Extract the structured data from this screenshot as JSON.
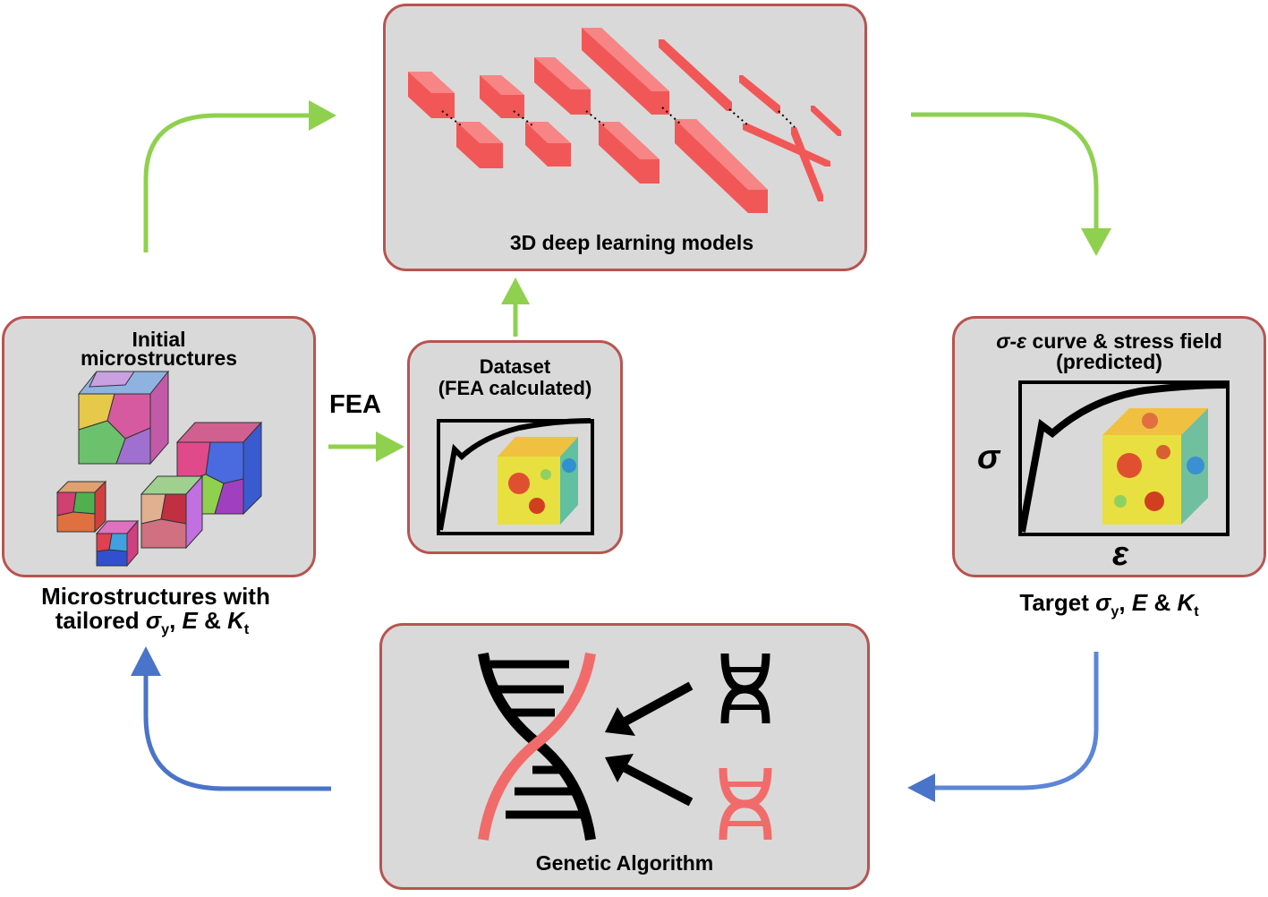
{
  "panels": {
    "dl_models": {
      "label": "3D deep learning models"
    },
    "initial": {
      "label_line1": "Initial",
      "label_line2": "microstructures"
    },
    "dataset": {
      "label_line1": "Dataset",
      "label_line2": "(FEA calculated)"
    },
    "predicted": {
      "label_line1_rest": " curve & stress field",
      "label_line2": "(predicted)",
      "sigma_eps": "σ-ε"
    },
    "ga": {
      "label": "Genetic Algorithm"
    }
  },
  "arrows": {
    "fea_label": "FEA"
  },
  "captions": {
    "result_line1": "Microstructures with",
    "result_line2_prefix": "tailored ",
    "target_prefix": "Target "
  },
  "symbols": {
    "sigma": "σ",
    "epsilon": "ε",
    "sub_y": "y",
    "sub_t": "t",
    "E": "E",
    "K": "K",
    "amp": "&",
    "comma": ",",
    "dash_label": "σ-ε"
  },
  "colors": {
    "panel_fill": "#d9d9d9",
    "panel_border": "#b85450",
    "green_arrow": "#8fd14f",
    "blue_arrow": "#4a74c9",
    "layer_red": "#f25757",
    "dna_red": "#f26b6b"
  }
}
